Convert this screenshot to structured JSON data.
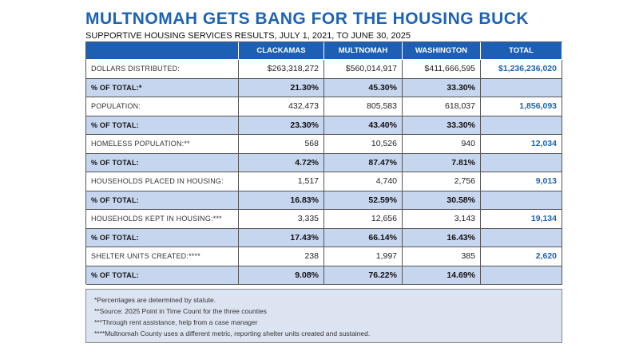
{
  "header": {
    "title": "MULTNOMAH GETS BANG FOR THE HOUSING BUCK",
    "subtitle": "SUPPORTIVE HOUSING SERVICES RESULTS, JULY 1, 2021, TO JUNE 30, 2025"
  },
  "table": {
    "columns": [
      "CLACKAMAS",
      "MULTNOMAH",
      "WASHINGTON",
      "TOTAL"
    ],
    "rows": [
      [
        "DOLLARS DISTRIBUTED:",
        "$263,318,272",
        "$560,014,917",
        "$411,666,595",
        "$1,236,236,020"
      ],
      [
        "% OF TOTAL:*",
        "21.30%",
        "45.30%",
        "33.30%"
      ],
      [
        "POPULATION:",
        "432,473",
        "805,583",
        "618,037",
        "1,856,093"
      ],
      [
        "% OF TOTAL:",
        "23.30%",
        "43.40%",
        "33.30%"
      ],
      [
        "HOMELESS POPULATION:**",
        "568",
        "10,526",
        "940",
        "12,034"
      ],
      [
        "% OF TOTAL:",
        "4.72%",
        "87.47%",
        "7.81%"
      ],
      [
        "HOUSEHOLDS PLACED IN HOUSING:",
        "1,517",
        "4,740",
        "2,756",
        "9,013"
      ],
      [
        "% OF TOTAL:",
        "16.83%",
        "52.59%",
        "30.58%"
      ],
      [
        "HOUSEHOLDS KEPT IN HOUSING:***",
        "3,335",
        "12,656",
        "3,143",
        "19,134"
      ],
      [
        "% OF TOTAL:",
        "17.43%",
        "66.14%",
        "16.43%"
      ],
      [
        "SHELTER UNITS CREATED:****",
        "238",
        "1,997",
        "385",
        "2,620"
      ],
      [
        "% OF TOTAL:",
        "9.08%",
        "76.22%",
        "14.69%"
      ]
    ]
  },
  "notes": [
    "*Percentages are determined by statute.",
    "**Source: 2025 Point in Time Count for the three counties",
    "***Through rent assistance, help from a case manager",
    "****Multnomah County uses a different metric, reporting shelter units created and sustained."
  ]
}
